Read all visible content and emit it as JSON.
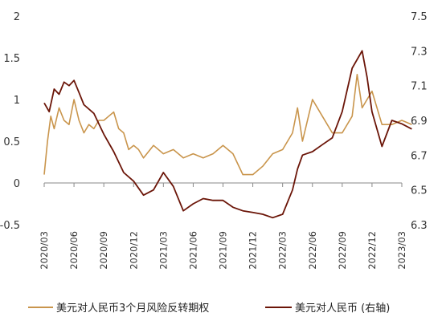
{
  "chart_data": {
    "type": "line",
    "title": "",
    "xlabel": "",
    "ylabel": "",
    "y2label": "",
    "legend_position": "bottom",
    "grid": false,
    "x_ticks": [
      "2020/03",
      "2020/06",
      "2020/09",
      "2020/12",
      "2021/03",
      "2021/06",
      "2021/09",
      "2021/12",
      "2022/03",
      "2022/06",
      "2022/09",
      "2022/12",
      "2023/03"
    ],
    "y_left": {
      "min": -0.5,
      "max": 2,
      "ticks": [
        "-0.5",
        "0",
        "0.5",
        "1",
        "1.5",
        "2"
      ]
    },
    "y_right": {
      "min": 6.3,
      "max": 7.5,
      "ticks": [
        "6.3",
        "6.5",
        "6.7",
        "6.9",
        "7.1",
        "7.3",
        "7.5"
      ]
    },
    "series": [
      {
        "name": "美元对人民币3个月风险反转期权",
        "axis": "left",
        "color": "#c9954c",
        "x": [
          "2020/03",
          "2020/03",
          "2020/03",
          "2020/04",
          "2020/04",
          "2020/05",
          "2020/05",
          "2020/06",
          "2020/06",
          "2020/07",
          "2020/07",
          "2020/08",
          "2020/08",
          "2020/09",
          "2020/09",
          "2020/10",
          "2020/10",
          "2020/11",
          "2020/11",
          "2020/12",
          "2020/12",
          "2021/01",
          "2021/02",
          "2021/03",
          "2021/04",
          "2021/05",
          "2021/06",
          "2021/07",
          "2021/08",
          "2021/09",
          "2021/10",
          "2021/11",
          "2021/12",
          "2022/01",
          "2022/02",
          "2022/03",
          "2022/04",
          "2022/04",
          "2022/05",
          "2022/06",
          "2022/07",
          "2022/08",
          "2022/09",
          "2022/10",
          "2022/10",
          "2022/11",
          "2022/12",
          "2023/01",
          "2023/02",
          "2023/03",
          "2023/04"
        ],
        "values": [
          0.1,
          0.5,
          0.8,
          0.65,
          0.9,
          0.75,
          0.7,
          1.0,
          0.75,
          0.6,
          0.7,
          0.65,
          0.75,
          0.75,
          0.8,
          0.85,
          0.65,
          0.6,
          0.4,
          0.45,
          0.4,
          0.3,
          0.45,
          0.35,
          0.4,
          0.3,
          0.35,
          0.3,
          0.35,
          0.45,
          0.35,
          0.1,
          0.1,
          0.2,
          0.35,
          0.4,
          0.6,
          0.9,
          0.5,
          1.0,
          0.8,
          0.6,
          0.6,
          0.8,
          1.3,
          0.9,
          1.1,
          0.7,
          0.7,
          0.75,
          0.7
        ]
      },
      {
        "name": "美元对人民币 (右轴)",
        "axis": "right",
        "color": "#6b1508",
        "x": [
          "2020/03",
          "2020/03",
          "2020/04",
          "2020/04",
          "2020/05",
          "2020/05",
          "2020/06",
          "2020/06",
          "2020/07",
          "2020/08",
          "2020/09",
          "2020/10",
          "2020/11",
          "2020/12",
          "2021/01",
          "2021/02",
          "2021/03",
          "2021/04",
          "2021/05",
          "2021/06",
          "2021/07",
          "2021/08",
          "2021/09",
          "2021/10",
          "2021/11",
          "2021/12",
          "2022/01",
          "2022/02",
          "2022/03",
          "2022/04",
          "2022/04",
          "2022/05",
          "2022/06",
          "2022/07",
          "2022/08",
          "2022/09",
          "2022/10",
          "2022/11",
          "2022/11",
          "2022/12",
          "2023/01",
          "2023/02",
          "2023/03",
          "2023/04"
        ],
        "values": [
          7.0,
          6.95,
          7.08,
          7.05,
          7.12,
          7.1,
          7.13,
          7.06,
          6.99,
          6.94,
          6.82,
          6.72,
          6.6,
          6.55,
          6.47,
          6.5,
          6.6,
          6.52,
          6.38,
          6.42,
          6.45,
          6.44,
          6.44,
          6.4,
          6.38,
          6.37,
          6.36,
          6.34,
          6.36,
          6.5,
          6.62,
          6.7,
          6.72,
          6.76,
          6.8,
          6.95,
          7.2,
          7.3,
          7.15,
          6.95,
          6.75,
          6.9,
          6.88,
          6.85
        ]
      }
    ]
  }
}
